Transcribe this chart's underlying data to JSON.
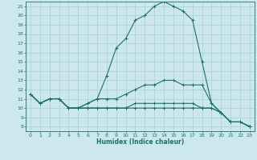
{
  "xlabel": "Humidex (Indice chaleur)",
  "line_color": "#1a7070",
  "bg_color": "#cde8ec",
  "grid_color": "#aacdd4",
  "xlim": [
    -0.5,
    23.5
  ],
  "ylim": [
    7.5,
    21.5
  ],
  "xticks": [
    0,
    1,
    2,
    3,
    4,
    5,
    6,
    7,
    8,
    9,
    10,
    11,
    12,
    13,
    14,
    15,
    16,
    17,
    18,
    19,
    20,
    21,
    22,
    23
  ],
  "yticks": [
    8,
    9,
    10,
    11,
    12,
    13,
    14,
    15,
    16,
    17,
    18,
    19,
    20,
    21
  ],
  "series": [
    {
      "x": [
        0,
        1,
        2,
        3,
        4,
        5,
        6,
        7,
        8,
        9,
        10,
        11,
        12,
        13,
        14,
        15,
        16,
        17,
        18,
        19,
        20,
        21,
        22,
        23
      ],
      "y": [
        11.5,
        10.5,
        11,
        11,
        10,
        10,
        10.5,
        11,
        13.5,
        16.5,
        17.5,
        19.5,
        20,
        21,
        21.5,
        21,
        20.5,
        19.5,
        15,
        10.5,
        9.5,
        8.5,
        8.5,
        8
      ]
    },
    {
      "x": [
        0,
        1,
        2,
        3,
        4,
        5,
        6,
        7,
        8,
        9,
        10,
        11,
        12,
        13,
        14,
        15,
        16,
        17,
        18,
        19,
        20,
        21,
        22,
        23
      ],
      "y": [
        11.5,
        10.5,
        11,
        11,
        10,
        10,
        10.5,
        11,
        11,
        11,
        11.5,
        12,
        12.5,
        12.5,
        13,
        13,
        12.5,
        12.5,
        12.5,
        10.5,
        9.5,
        8.5,
        8.5,
        8
      ]
    },
    {
      "x": [
        0,
        1,
        2,
        3,
        4,
        5,
        6,
        7,
        8,
        9,
        10,
        11,
        12,
        13,
        14,
        15,
        16,
        17,
        18,
        19,
        20,
        21,
        22,
        23
      ],
      "y": [
        11.5,
        10.5,
        11,
        11,
        10,
        10,
        10,
        10,
        10,
        10,
        10,
        10.5,
        10.5,
        10.5,
        10.5,
        10.5,
        10.5,
        10.5,
        10,
        10,
        9.5,
        8.5,
        8.5,
        8
      ]
    },
    {
      "x": [
        0,
        1,
        2,
        3,
        4,
        5,
        6,
        7,
        8,
        9,
        10,
        11,
        12,
        13,
        14,
        15,
        16,
        17,
        18,
        19,
        20,
        21,
        22,
        23
      ],
      "y": [
        11.5,
        10.5,
        11,
        11,
        10,
        10,
        10,
        10,
        10,
        10,
        10,
        10,
        10,
        10,
        10,
        10,
        10,
        10,
        10,
        10,
        9.5,
        8.5,
        8.5,
        8
      ]
    }
  ]
}
